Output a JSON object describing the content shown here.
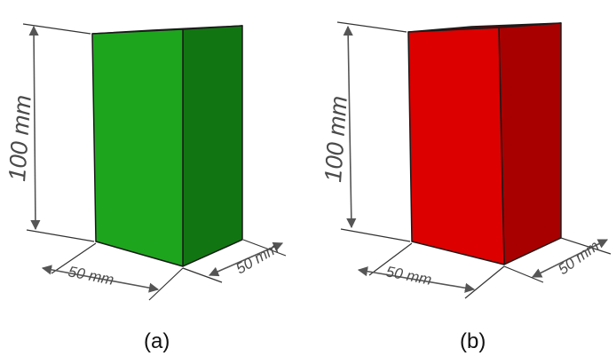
{
  "panels": [
    {
      "caption": "(a)",
      "height_label": "100 mm",
      "width_label": "50 mm",
      "depth_label": "50 mm",
      "colors": {
        "front": "#1ea51e",
        "side": "#117611",
        "top": "#0c5a0c"
      }
    },
    {
      "caption": "(b)",
      "height_label": "100 mm",
      "width_label": "50 mm",
      "depth_label": "50 mm",
      "colors": {
        "front": "#dc0000",
        "side": "#a80000",
        "top": "#7a0000"
      }
    }
  ]
}
